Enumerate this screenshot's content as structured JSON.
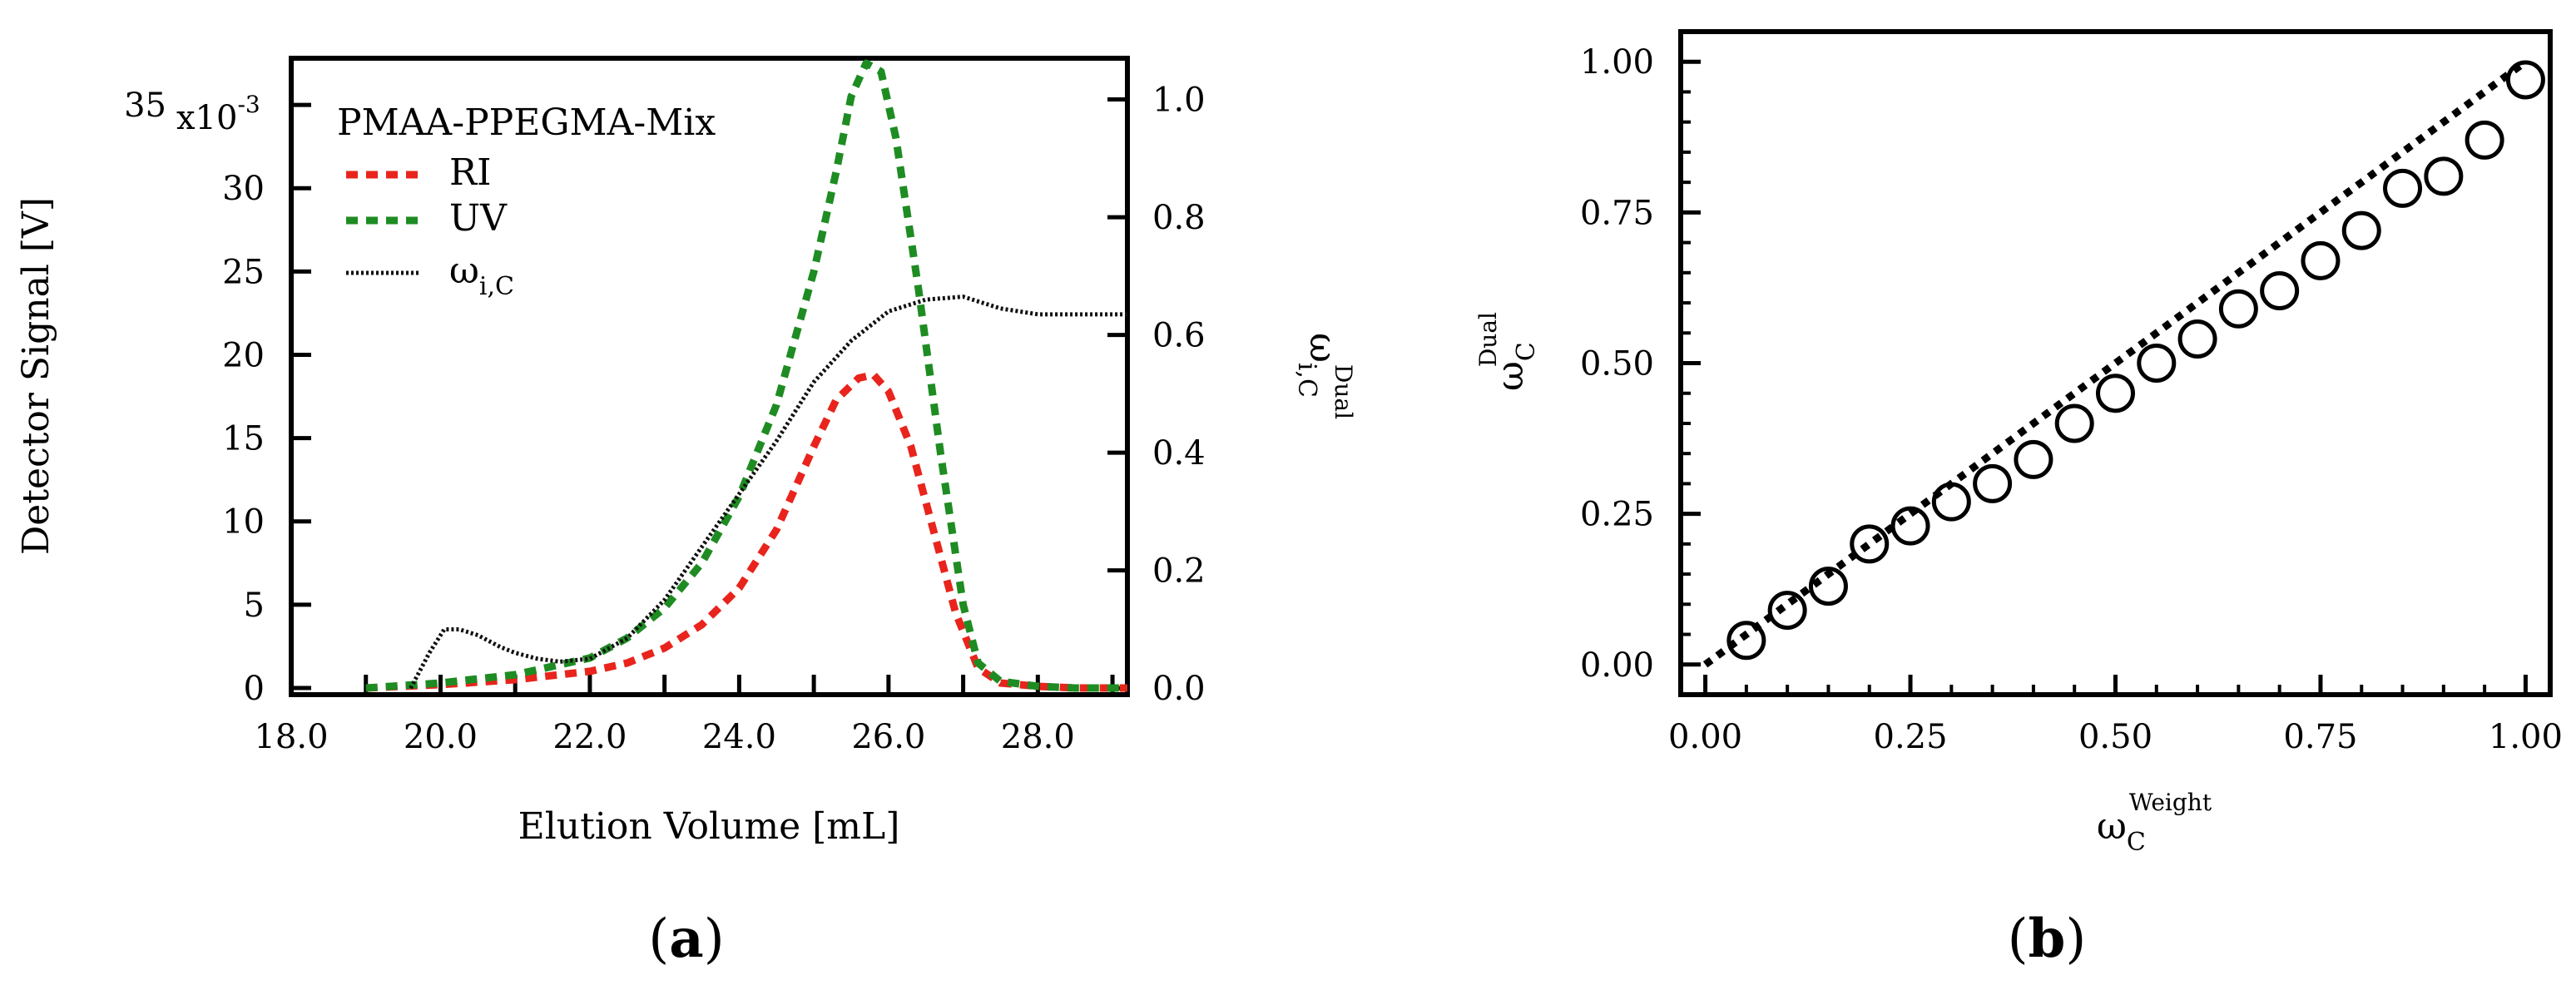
{
  "chart_data": [
    {
      "id": "a",
      "panel_label": "a",
      "type": "line",
      "xlabel": "Elution Volume [mL]",
      "ylabel": "Detector Signal [V]",
      "y_exponent": "x10",
      "y_exponent_power": "-3",
      "y2label": {
        "base": "ω",
        "sub": "i,C",
        "sup": "Dual"
      },
      "xlim": [
        18,
        29.2
      ],
      "ylim": [
        -0.4,
        37.8
      ],
      "y2lim": [
        -0.011,
        1.07
      ],
      "xticks": [
        "18.0",
        "20.0",
        "22.0",
        "24.0",
        "26.0",
        "28.0"
      ],
      "yticks": [
        "0",
        "5",
        "10",
        "15",
        "20",
        "25",
        "30",
        "35"
      ],
      "y2ticks": [
        "0.0",
        "0.2",
        "0.4",
        "0.6",
        "0.8",
        "1.0"
      ],
      "legend": {
        "title": "PMAA-PPEGMA-Mix",
        "position": "top-left"
      },
      "series": [
        {
          "name": "RI",
          "axis": "left",
          "color": "#e8241c",
          "style": "dashed",
          "x": [
            19.0,
            20.0,
            21.0,
            22.0,
            22.5,
            23.0,
            23.5,
            24.0,
            24.5,
            25.0,
            25.3,
            25.6,
            25.8,
            26.0,
            26.3,
            26.6,
            26.9,
            27.2,
            27.5,
            28.0,
            28.5,
            29.2
          ],
          "y": [
            0.0,
            0.2,
            0.5,
            1.0,
            1.5,
            2.4,
            3.8,
            6.0,
            9.5,
            14.5,
            17.3,
            18.6,
            18.8,
            17.8,
            14.5,
            9.5,
            4.5,
            1.2,
            0.3,
            0.1,
            0.0,
            0.0
          ]
        },
        {
          "name": "UV",
          "axis": "left",
          "color": "#1e8c22",
          "style": "dashed",
          "x": [
            19.0,
            20.0,
            21.0,
            22.0,
            22.5,
            23.0,
            23.5,
            24.0,
            24.5,
            25.0,
            25.3,
            25.5,
            25.7,
            25.9,
            26.1,
            26.4,
            26.7,
            27.0,
            27.2,
            27.5,
            28.0,
            28.5,
            29.2
          ],
          "y": [
            0.0,
            0.3,
            0.8,
            1.8,
            3.0,
            4.8,
            7.5,
            11.5,
            17.0,
            25.0,
            31.0,
            35.5,
            37.5,
            37.0,
            33.0,
            24.0,
            14.0,
            5.0,
            1.5,
            0.4,
            0.1,
            0.0,
            0.0
          ]
        },
        {
          "name": "ω",
          "name_sub": "i,C",
          "axis": "right",
          "color": "#111111",
          "style": "dotted",
          "x": [
            19.6,
            19.85,
            20.05,
            20.25,
            20.5,
            20.8,
            21.0,
            21.3,
            21.6,
            22.0,
            22.5,
            23.0,
            23.5,
            24.0,
            24.5,
            25.0,
            25.5,
            26.0,
            26.5,
            27.0,
            27.5,
            28.0,
            28.5,
            29.2
          ],
          "y": [
            0.0,
            0.06,
            0.1,
            0.1,
            0.09,
            0.07,
            0.06,
            0.05,
            0.045,
            0.05,
            0.085,
            0.15,
            0.24,
            0.33,
            0.42,
            0.52,
            0.59,
            0.64,
            0.66,
            0.665,
            0.645,
            0.635,
            0.635,
            0.635
          ]
        }
      ]
    },
    {
      "id": "b",
      "panel_label": "b",
      "type": "scatter",
      "xlabel": {
        "base": "ω",
        "sub": "C",
        "sup": "Weight"
      },
      "ylabel": {
        "base": "ω",
        "sub": "C",
        "sup": "Dual"
      },
      "xlim": [
        -0.03,
        1.03
      ],
      "ylim": [
        -0.05,
        1.05
      ],
      "xticks": [
        "0.00",
        "0.25",
        "0.50",
        "0.75",
        "1.00"
      ],
      "yticks": [
        "0.00",
        "0.25",
        "0.50",
        "0.75",
        "1.00"
      ],
      "reference_line": {
        "x": [
          0.0,
          1.0
        ],
        "y": [
          0.0,
          1.0
        ],
        "style": "dotted"
      },
      "points": {
        "x": [
          0.05,
          0.1,
          0.15,
          0.2,
          0.25,
          0.3,
          0.35,
          0.4,
          0.45,
          0.5,
          0.55,
          0.6,
          0.65,
          0.7,
          0.75,
          0.8,
          0.85,
          0.9,
          0.95,
          1.0
        ],
        "y": [
          0.04,
          0.09,
          0.13,
          0.2,
          0.23,
          0.27,
          0.3,
          0.34,
          0.4,
          0.45,
          0.5,
          0.54,
          0.59,
          0.62,
          0.67,
          0.72,
          0.79,
          0.81,
          0.87,
          0.97
        ]
      }
    }
  ]
}
